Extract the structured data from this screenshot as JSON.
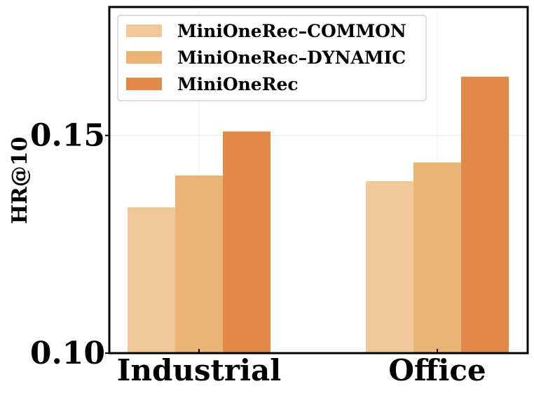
{
  "chart_data": {
    "type": "bar",
    "title": "",
    "xlabel": "",
    "ylabel": "HR@10",
    "categories": [
      "Industrial",
      "Office"
    ],
    "series": [
      {
        "name": "MiniOneRec–COMMON",
        "values": [
          0.1335,
          0.1395
        ],
        "color": "#f0c99b"
      },
      {
        "name": "MiniOneRec–DYNAMIC",
        "values": [
          0.1408,
          0.1438
        ],
        "color": "#e9b475"
      },
      {
        "name": "MiniOneRec",
        "values": [
          0.1509,
          0.1635
        ],
        "color": "#e0894a"
      }
    ],
    "ylim": [
      0.1,
      0.1795
    ],
    "yticks": [
      "0.10",
      "0.15"
    ],
    "grid": true,
    "legend_position": "top-left"
  }
}
